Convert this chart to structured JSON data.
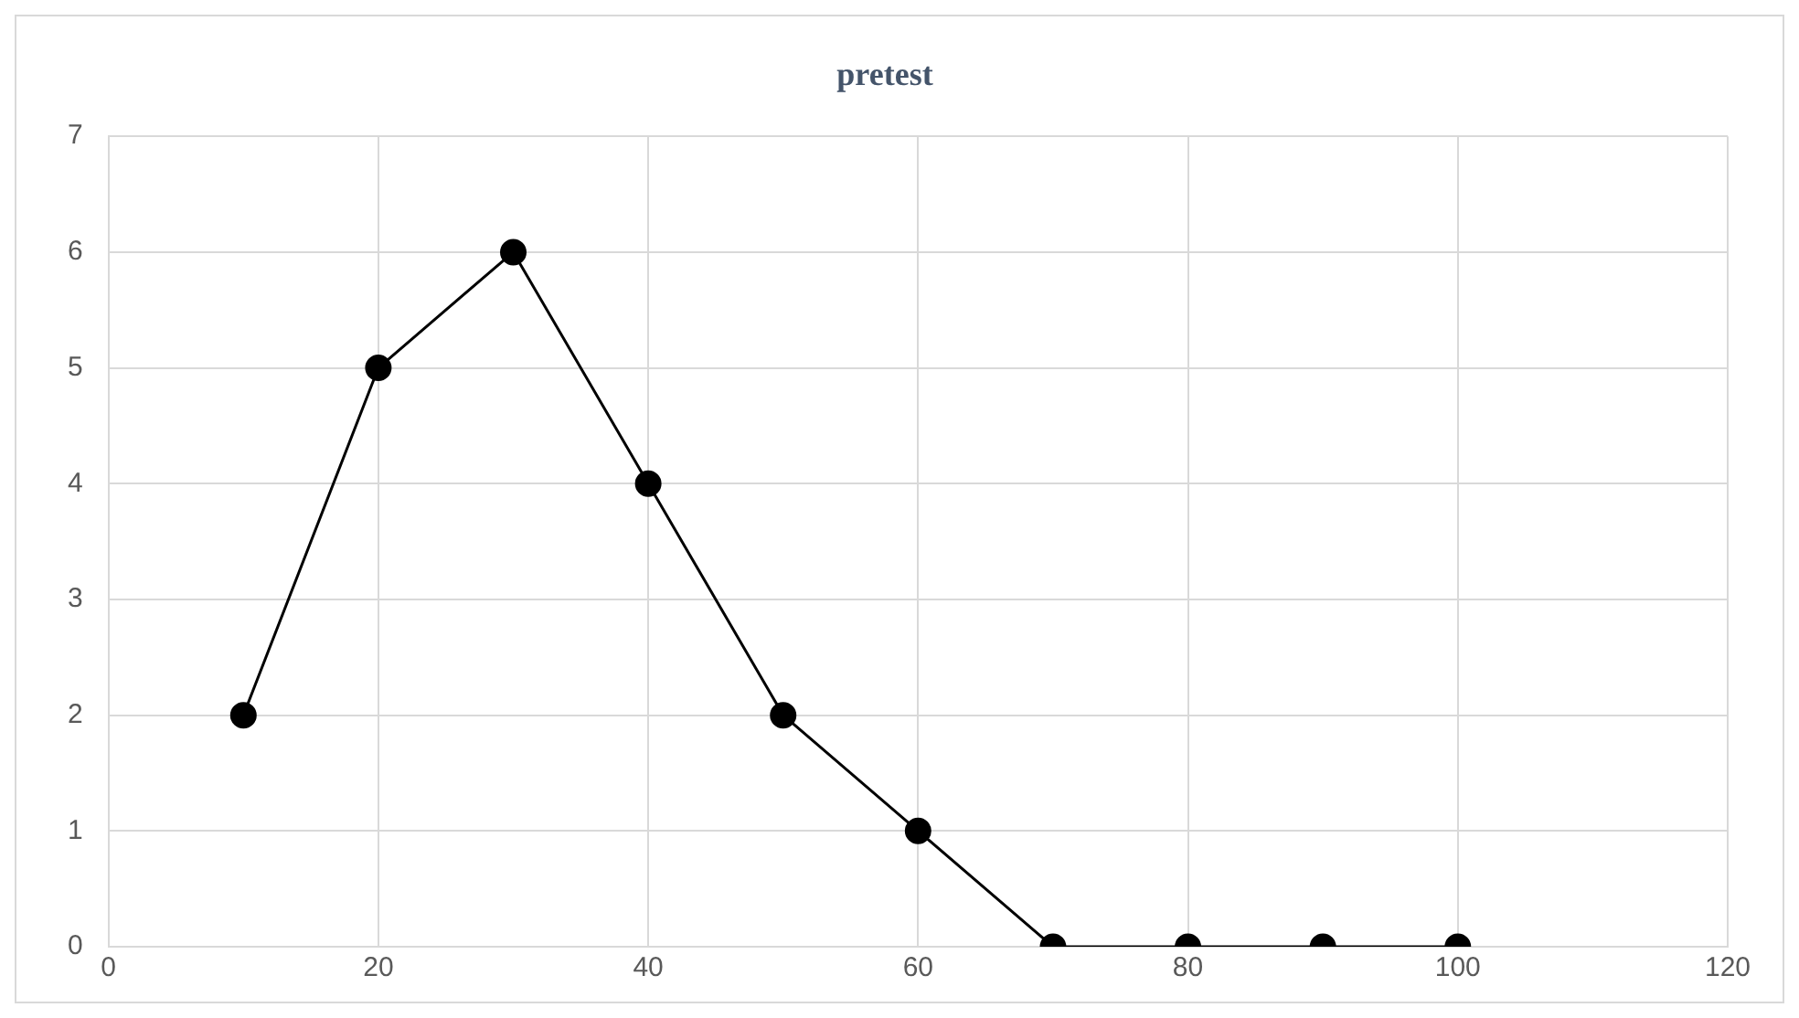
{
  "chart_data": {
    "type": "line",
    "title": "pretest",
    "x": [
      10,
      20,
      30,
      40,
      50,
      60,
      70,
      80,
      90,
      100
    ],
    "series": [
      {
        "color": "#000000",
        "values": [
          2,
          5,
          6,
          4,
          2,
          1,
          0,
          0,
          0,
          0
        ]
      }
    ],
    "xlim": [
      0,
      120
    ],
    "xticks": [
      0,
      20,
      40,
      60,
      80,
      100,
      120
    ],
    "ylim": [
      0,
      7
    ],
    "yticks": [
      0,
      1,
      2,
      3,
      4,
      5,
      6,
      7
    ],
    "grid": true,
    "marker": "circle",
    "line_style": "solid",
    "legend": false
  }
}
